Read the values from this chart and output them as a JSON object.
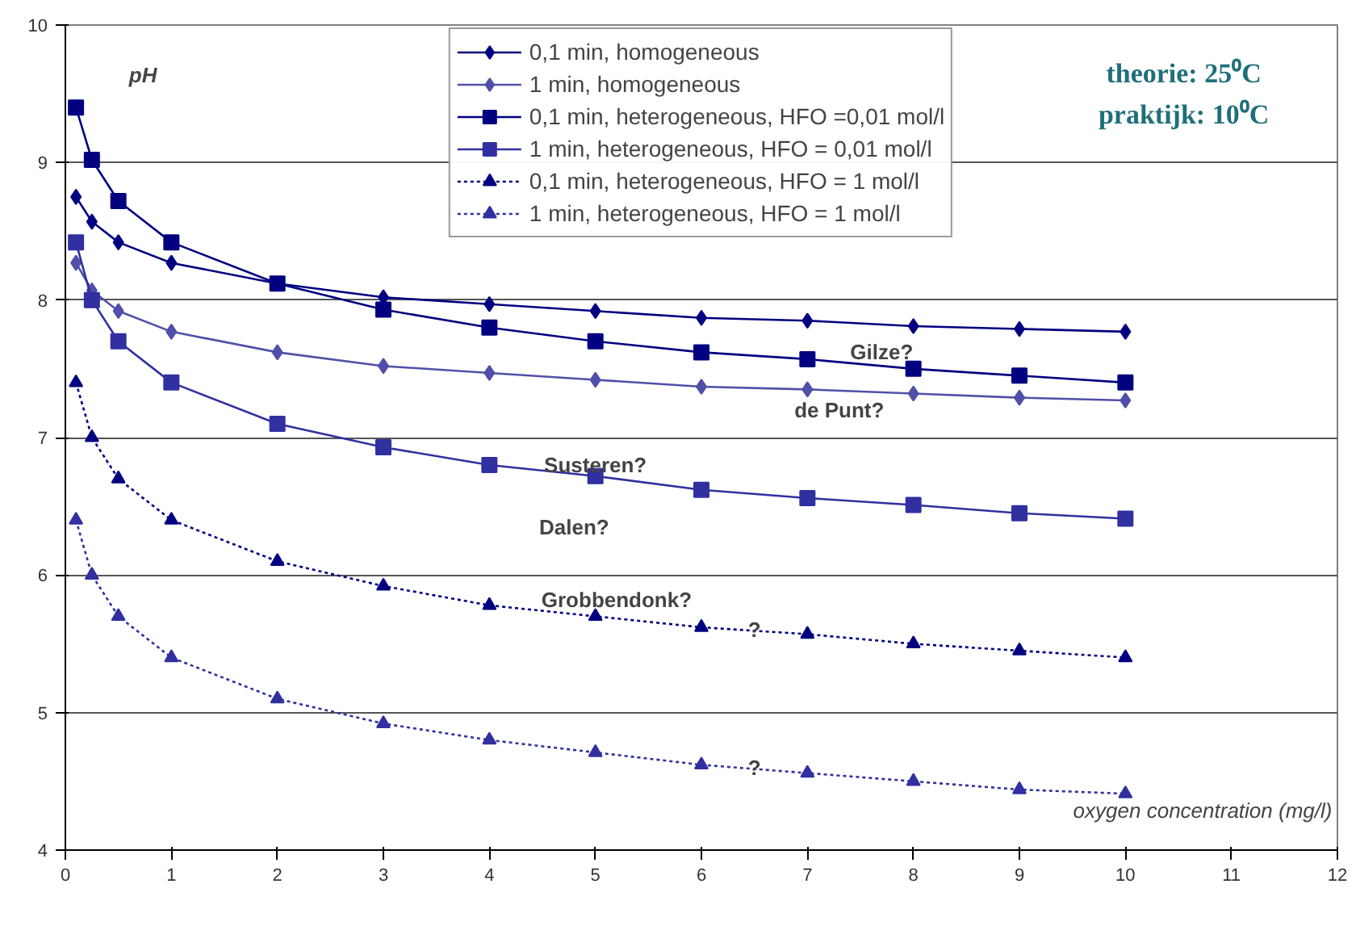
{
  "chart_data": {
    "type": "line",
    "ylabel": "pH",
    "xlabel": "oxygen concentration (mg/l)",
    "x": [
      0.1,
      0.25,
      0.5,
      1,
      2,
      3,
      4,
      5,
      6,
      7,
      8,
      9,
      10
    ],
    "series": [
      {
        "name": "0,1 min, homogeneous",
        "color": "#000080",
        "marker": "diamond",
        "line_style": "solid",
        "values": [
          8.75,
          8.57,
          8.42,
          8.27,
          8.12,
          8.02,
          7.97,
          7.92,
          7.87,
          7.85,
          7.81,
          7.79,
          7.77
        ]
      },
      {
        "name": "1 min, homogeneous",
        "color": "#5050a8",
        "marker": "diamond",
        "line_style": "solid",
        "values": [
          8.27,
          8.07,
          7.92,
          7.77,
          7.62,
          7.52,
          7.47,
          7.42,
          7.37,
          7.35,
          7.32,
          7.29,
          7.27
        ]
      },
      {
        "name": "0,1 min, heterogeneous, HFO =0,01 mol/l",
        "color": "#000080",
        "marker": "square",
        "line_style": "solid",
        "values": [
          9.4,
          9.02,
          8.72,
          8.42,
          8.12,
          7.93,
          7.8,
          7.7,
          7.62,
          7.57,
          7.5,
          7.45,
          7.4
        ]
      },
      {
        "name": "1 min, heterogeneous, HFO = 0,01 mol/l",
        "color": "#3030a0",
        "marker": "square",
        "line_style": "solid",
        "values": [
          8.42,
          8.0,
          7.7,
          7.4,
          7.1,
          6.93,
          6.8,
          6.72,
          6.62,
          6.56,
          6.51,
          6.45,
          6.41
        ]
      },
      {
        "name": "0,1 min, heterogeneous, HFO = 1 mol/l",
        "color": "#000080",
        "marker": "triangle",
        "line_style": "dotted",
        "values": [
          7.4,
          7.0,
          6.7,
          6.4,
          6.1,
          5.92,
          5.78,
          5.7,
          5.62,
          5.57,
          5.5,
          5.45,
          5.4
        ]
      },
      {
        "name": "1 min, heterogeneous, HFO = 1 mol/l",
        "color": "#3030a0",
        "marker": "triangle",
        "line_style": "dotted",
        "values": [
          6.4,
          6.0,
          5.7,
          5.4,
          5.1,
          4.92,
          4.8,
          4.71,
          4.62,
          4.56,
          4.5,
          4.44,
          4.41
        ]
      }
    ],
    "xlim": [
      0,
      12
    ],
    "ylim": [
      4,
      10
    ],
    "xticks": [
      0,
      1,
      2,
      3,
      4,
      5,
      6,
      7,
      8,
      9,
      10,
      11,
      12
    ],
    "yticks": [
      4,
      5,
      6,
      7,
      8,
      9,
      10
    ],
    "grid": "y",
    "legend": "top",
    "annotations": [
      "theorie: 25⁰C",
      "praktijk: 10⁰C",
      "Gilze?",
      "de Punt?",
      "Susteren?",
      "Dalen?",
      "Grobbendonk?",
      "?",
      "?"
    ]
  }
}
